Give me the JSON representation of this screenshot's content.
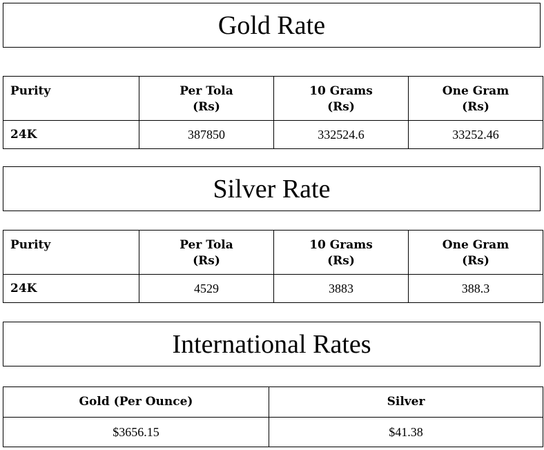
{
  "gold": {
    "title": "Gold Rate",
    "headers": [
      "Purity",
      "Per Tola",
      "10 Grams",
      "One Gram"
    ],
    "unit": "(Rs)",
    "row": [
      "24K",
      "387850",
      "332524.6",
      "33252.46"
    ]
  },
  "silver": {
    "title": "Silver Rate",
    "headers": [
      "Purity",
      "Per Tola",
      "10 Grams",
      "One Gram"
    ],
    "unit": "(Rs)",
    "row": [
      "24K",
      "4529",
      "3883",
      "388.3"
    ]
  },
  "international": {
    "title": "International Rates",
    "headers": [
      "Gold (Per Ounce)",
      "Silver"
    ],
    "row": [
      "$3656.15",
      "$41.38"
    ]
  }
}
